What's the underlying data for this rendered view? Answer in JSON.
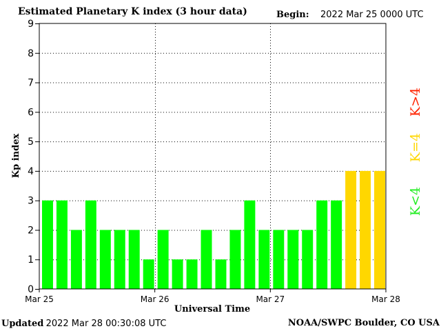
{
  "header": {
    "title": "Estimated Planetary K index (3 hour data)",
    "begin_label": "Begin:",
    "begin_value": "2022 Mar 25 0000 UTC"
  },
  "footer": {
    "updated_label": "Updated",
    "updated_value": "2022 Mar 28 00:30:08 UTC",
    "credit": "NOAA/SWPC Boulder, CO USA"
  },
  "colors": {
    "below_storm": "#00ff00",
    "storm_threshold": "#ffd700",
    "above_storm": "#ff2200"
  },
  "legend_labels": [
    {
      "text": "K<4",
      "color": "#22ee22"
    },
    {
      "text": "K=4",
      "color": "#ffd700"
    },
    {
      "text": "K>4",
      "color": "#ff2200"
    }
  ],
  "chart_data": {
    "type": "bar",
    "title": "Estimated Planetary K index (3 hour data)",
    "xlabel": "Universal Time",
    "ylabel": "Kp index",
    "ylim": [
      0,
      9
    ],
    "yticks": [
      0,
      1,
      2,
      3,
      4,
      5,
      6,
      7,
      8,
      9
    ],
    "x_tick_labels": [
      "Mar 25",
      "Mar 26",
      "Mar 27",
      "Mar 28"
    ],
    "bins_per_day": 8,
    "grid": "dotted",
    "values": [
      3,
      3,
      2,
      3,
      2,
      2,
      2,
      1,
      2,
      1,
      1,
      2,
      1,
      2,
      3,
      2,
      2,
      2,
      2,
      3,
      3,
      4,
      4,
      4
    ]
  }
}
